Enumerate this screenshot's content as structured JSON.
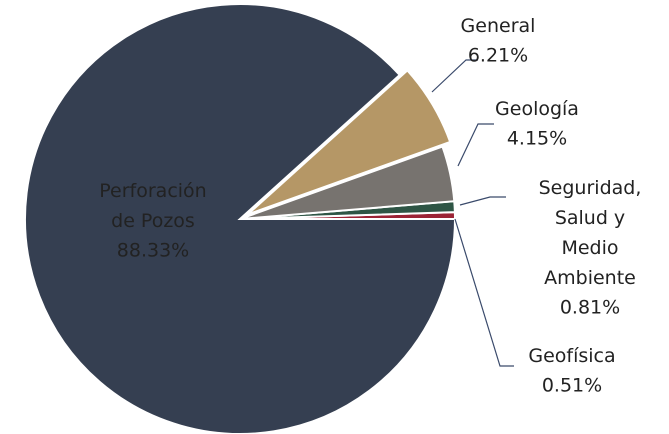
{
  "chart_data": {
    "type": "pie",
    "categories": [
      "Perforación de Pozos",
      "General",
      "Geología",
      "Seguridad, Salud y Medio Ambiente",
      "Geofísica"
    ],
    "values": [
      88.33,
      6.21,
      4.15,
      0.81,
      0.51
    ],
    "value_labels": [
      "88.33%",
      "6.21%",
      "4.15%",
      "0.81%",
      "0.51%"
    ],
    "colors": [
      "#353f51",
      "#b59766",
      "#77736f",
      "#2e5545",
      "#9b2335"
    ]
  }
}
